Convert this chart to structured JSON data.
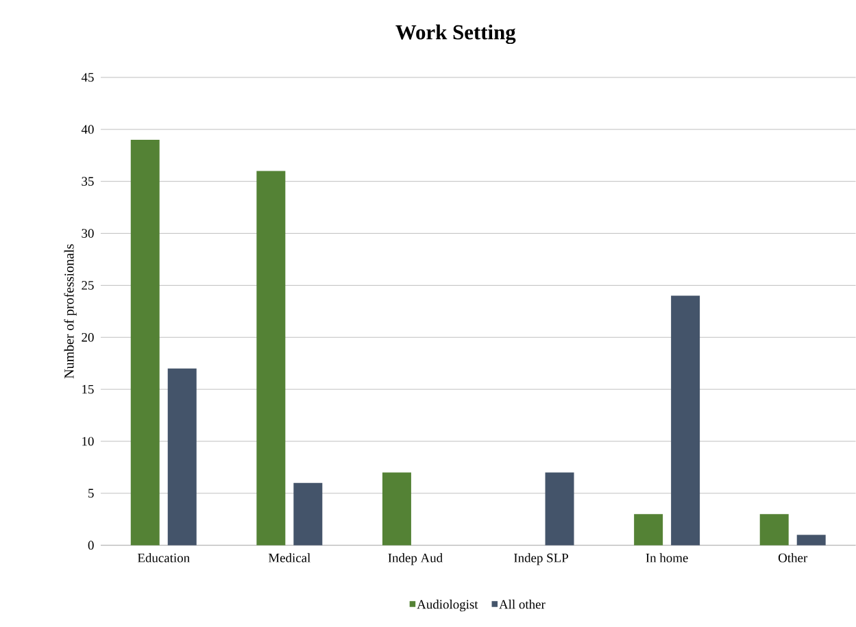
{
  "chart_data": {
    "type": "bar",
    "title": "Work Setting",
    "ylabel": "Number of professionals",
    "categories": [
      "Education",
      "Medical",
      "Indep Aud",
      "Indep SLP",
      "In home",
      "Other"
    ],
    "series": [
      {
        "name": "Audiologist",
        "color": "#548235",
        "values": [
          39,
          36,
          7,
          0,
          3,
          3
        ]
      },
      {
        "name": "All other",
        "color": "#44546a",
        "values": [
          17,
          6,
          0,
          7,
          24,
          1
        ]
      }
    ],
    "ylim": [
      0,
      45
    ],
    "yticks": [
      0,
      5,
      10,
      15,
      20,
      25,
      30,
      35,
      40,
      45
    ],
    "grid": "y",
    "legend": "bottom"
  }
}
